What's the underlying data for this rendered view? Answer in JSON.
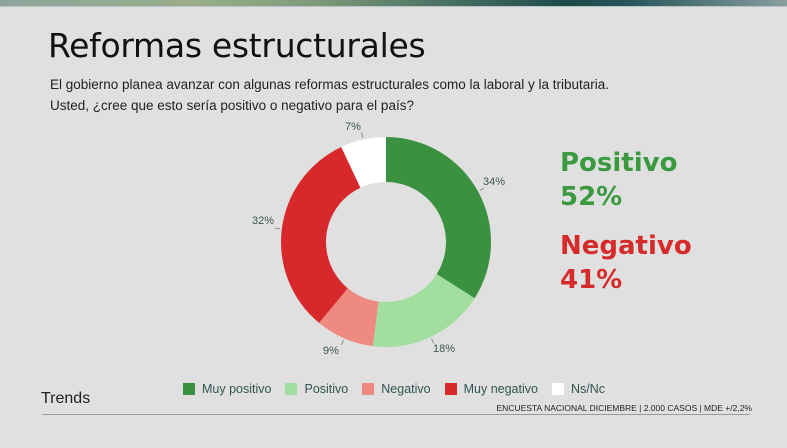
{
  "header": {
    "title": "Reformas estructurales",
    "subtitle_line1": "El gobierno planea avanzar con algunas reformas estructurales como la laboral y la tributaria.",
    "subtitle_line2": "Usted, ¿cree que esto sería positivo o negativo para el país?"
  },
  "summary": {
    "positive_label": "Positivo",
    "positive_value": "52%",
    "negative_label": "Negativo",
    "negative_value": "41%",
    "positive_color": "#3b9a3f",
    "negative_color": "#d62b2b"
  },
  "labels": {
    "muy_positivo": "34%",
    "positivo": "18%",
    "negativo": "9%",
    "muy_negativo": "32%",
    "ns_nc": "7%"
  },
  "legend": [
    {
      "label": "Muy positivo",
      "color": "#3a9140"
    },
    {
      "label": "Positivo",
      "color": "#a2dea0"
    },
    {
      "label": "Negativo",
      "color": "#ee8a80"
    },
    {
      "label": "Muy negativo",
      "color": "#d7282c"
    },
    {
      "label": "Ns/Nc",
      "color": "#ffffff"
    }
  ],
  "footer": {
    "brand": "Trends",
    "source": "ENCUESTA NACIONAL DICIEMBRE | 2.000 CASOS | MDE +/2,2%"
  },
  "chart_data": {
    "type": "pie",
    "subtype": "donut",
    "title": "Reformas estructurales",
    "subtitle": "El gobierno planea avanzar con algunas reformas estructurales como la laboral y la tributaria. Usted, ¿cree que esto sería positivo o negativo para el país?",
    "categories": [
      "Muy positivo",
      "Positivo",
      "Negativo",
      "Muy negativo",
      "Ns/Nc"
    ],
    "values": [
      34,
      18,
      9,
      32,
      7
    ],
    "colors": [
      "#3a9140",
      "#a2dea0",
      "#ee8a80",
      "#d7282c",
      "#ffffff"
    ],
    "unit": "%",
    "start_angle": "top, clockwise",
    "legend_position": "bottom",
    "annotations": [
      {
        "text": "Positivo 52%"
      },
      {
        "text": "Negativo 41%"
      }
    ]
  }
}
